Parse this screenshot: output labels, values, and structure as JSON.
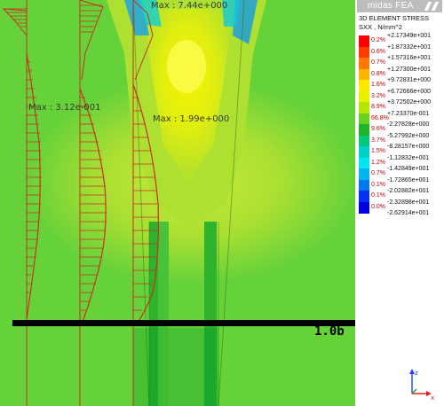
{
  "plot": {
    "max_top": "Max : 7.44e+000",
    "max_left": "Max : 3.12e-001",
    "max_mid": "Max : 1.99e+000",
    "baseline_label": "1.0b"
  },
  "legend": {
    "brand": "midas FEA",
    "title_line1": "3D ELEMENT STRESS",
    "title_line2": "SXX , N/mm^2",
    "top_value": "+2.17349e+001",
    "levels": [
      {
        "color": "#ff0000",
        "pct": "0.2%",
        "value": "+1.87332e+001"
      },
      {
        "color": "#ff3c00",
        "pct": "0.6%",
        "value": "+1.57316e+001"
      },
      {
        "color": "#ff7800",
        "pct": "0.7%",
        "value": "+1.27300e+001"
      },
      {
        "color": "#ffb400",
        "pct": "0.8%",
        "value": "+9.72831e+000"
      },
      {
        "color": "#ffe800",
        "pct": "1.6%",
        "value": "+6.72666e+000"
      },
      {
        "color": "#e8f000",
        "pct": "3.2%",
        "value": "+3.72502e+000"
      },
      {
        "color": "#b4e600",
        "pct": "8.9%",
        "value": "+7.23370e-001"
      },
      {
        "color": "#64d21e",
        "pct": "66.8%",
        "value": "-2.27828e+000"
      },
      {
        "color": "#1eb428",
        "pct": "9.6%",
        "value": "-5.27992e+000"
      },
      {
        "color": "#00c878",
        "pct": "3.7%",
        "value": "-8.28157e+000"
      },
      {
        "color": "#00d2c8",
        "pct": "1.5%",
        "value": "-1.12832e+001"
      },
      {
        "color": "#00e6f0",
        "pct": "1.2%",
        "value": "-1.42849e+001"
      },
      {
        "color": "#00b4f0",
        "pct": "0.7%",
        "value": "-1.72865e+001"
      },
      {
        "color": "#0078f0",
        "pct": "0.1%",
        "value": "-2.02882e+001"
      },
      {
        "color": "#0032f0",
        "pct": "0.1%",
        "value": "-2.32898e+001"
      },
      {
        "color": "#0000dc",
        "pct": "0.0%",
        "value": "-2.62914e+001"
      }
    ]
  },
  "axes": {
    "z_label": "z",
    "x_label": "x"
  }
}
